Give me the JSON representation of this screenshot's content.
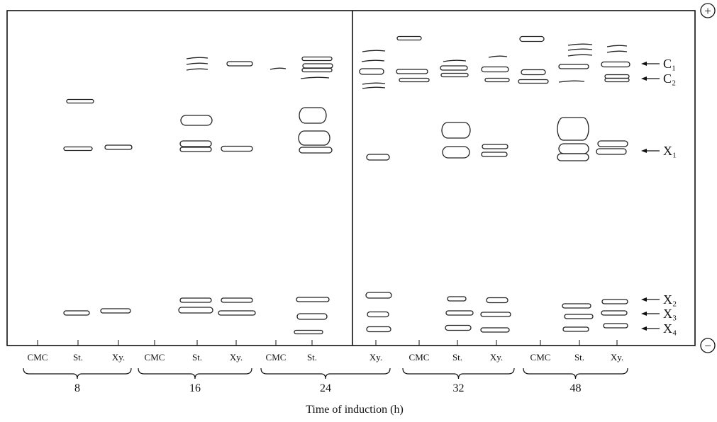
{
  "lanes": [
    "CMC",
    "St.",
    "Xy.",
    "CMC",
    "St.",
    "Xy.",
    "CMC",
    "St.",
    "Xy.",
    "CMC",
    "St.",
    "Xy.",
    "CMC",
    "St.",
    "Xy."
  ],
  "groups": [
    "8",
    "16",
    "24",
    "32",
    "48"
  ],
  "axis_title": "Time of induction (h)",
  "band_labels": [
    "C₁",
    "C₂",
    "X₁",
    "X₂",
    "X₃",
    "X₄"
  ],
  "poles": [
    "+",
    "−"
  ]
}
